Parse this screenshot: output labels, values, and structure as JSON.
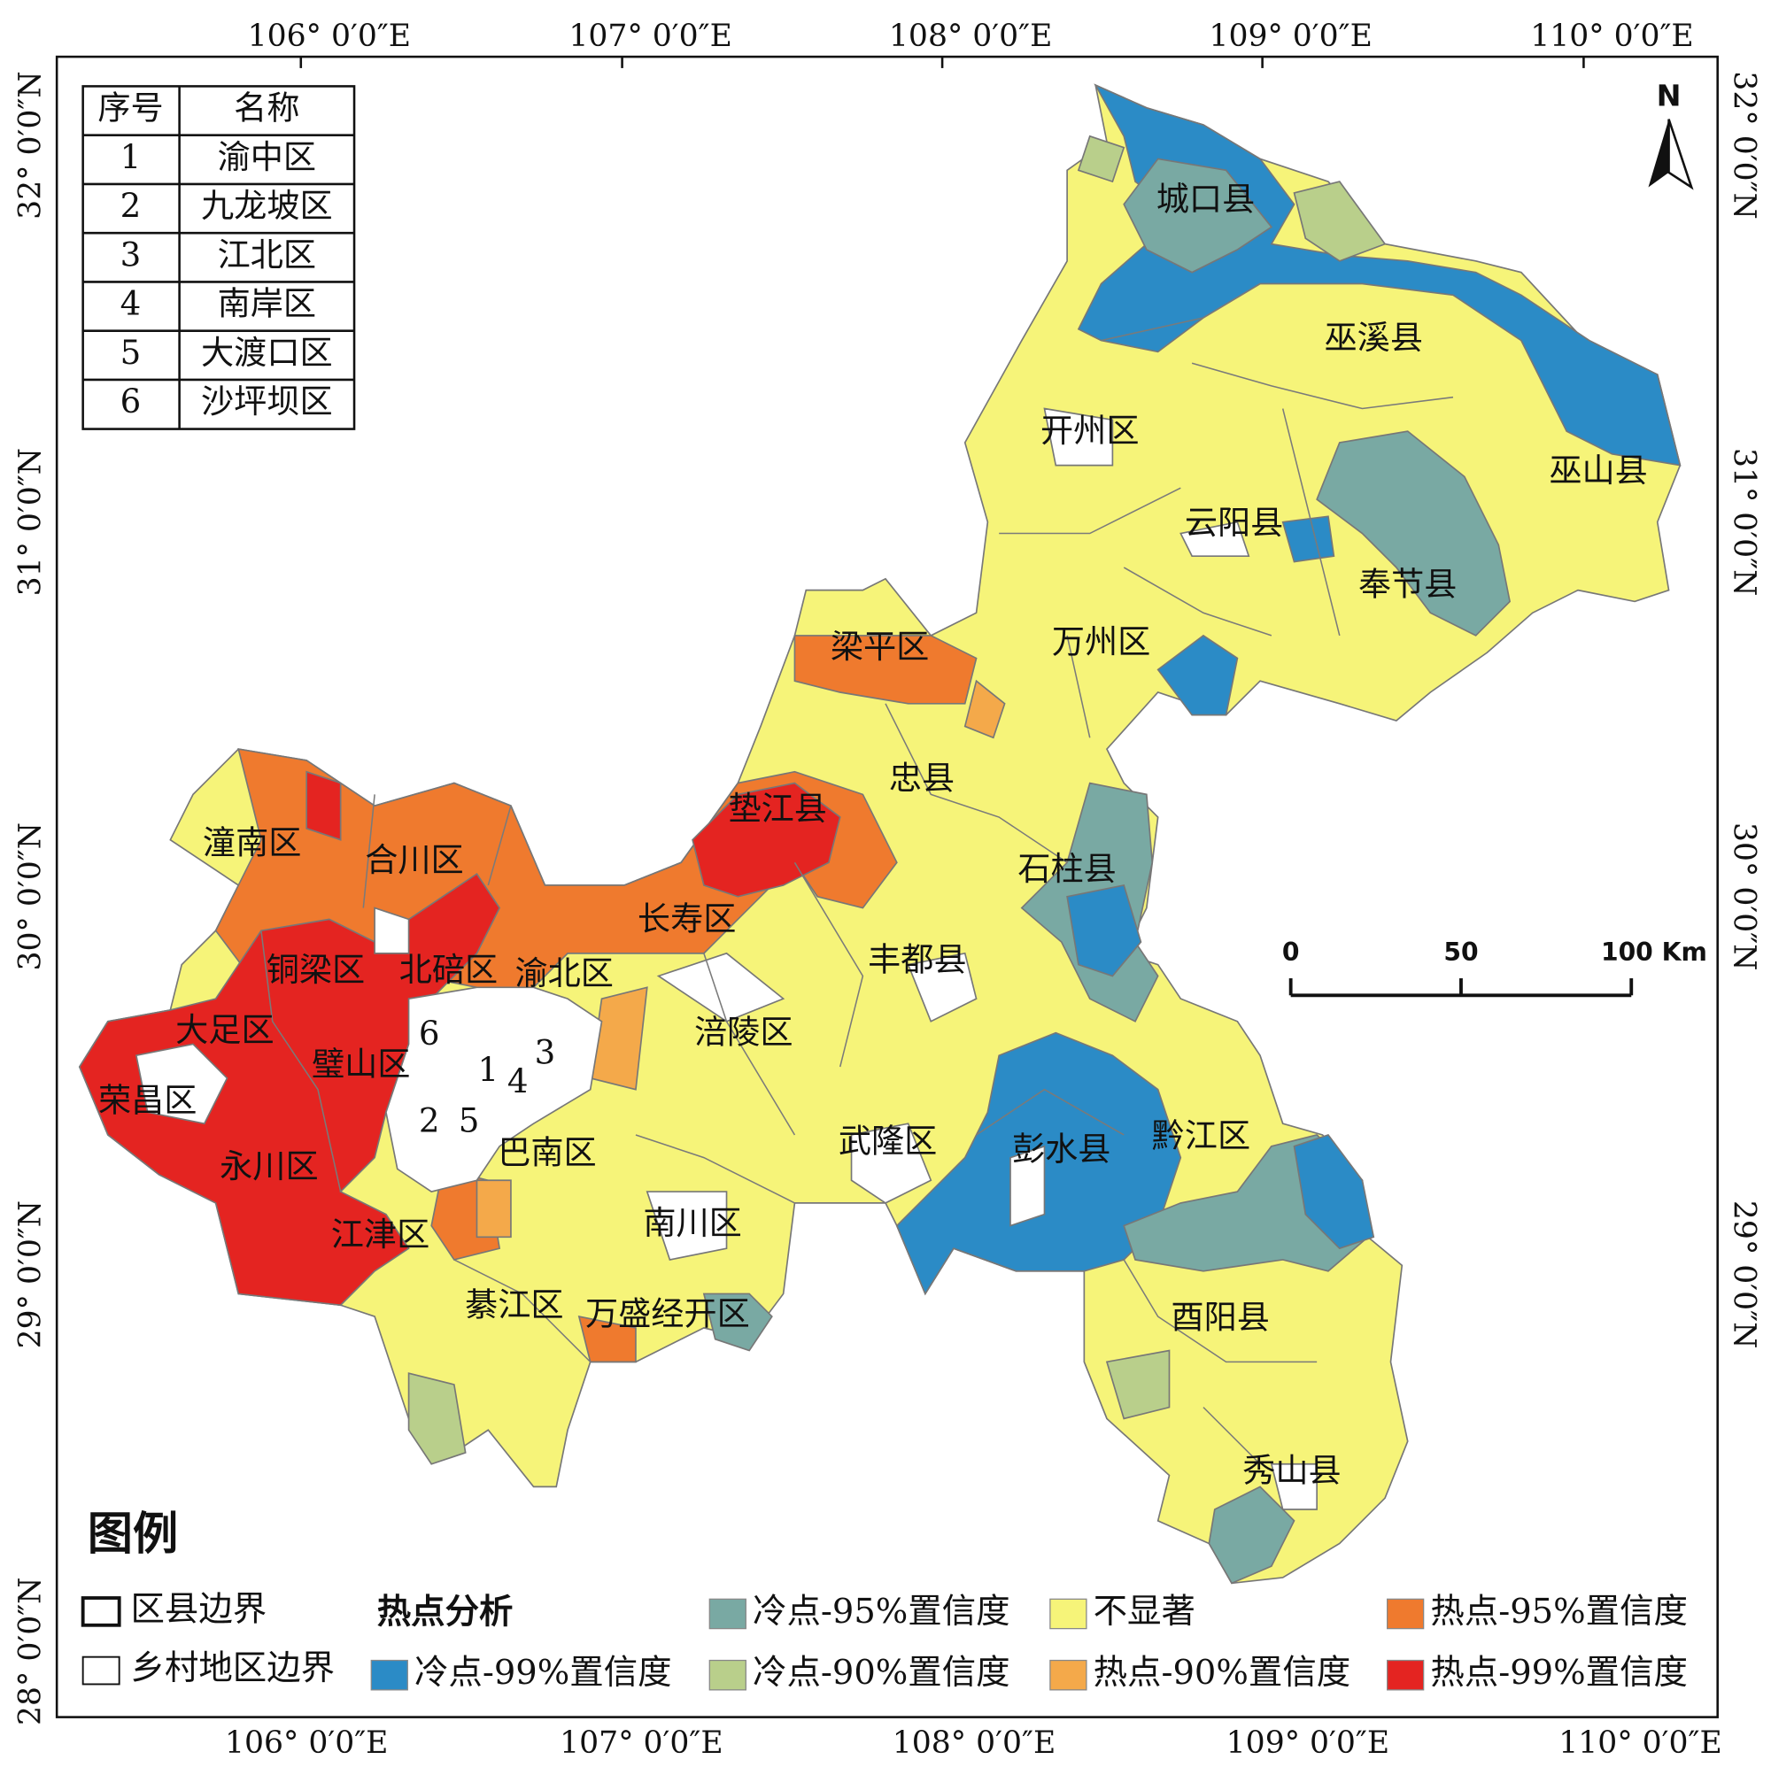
{
  "frame": {
    "top_labels": [
      "106° 0′0″E",
      "107° 0′0″E",
      "108° 0′0″E",
      "109° 0′0″E",
      "110° 0′0″E"
    ],
    "bottom_labels": [
      "106° 0′0″E",
      "107° 0′0″E",
      "108° 0′0″E",
      "109° 0′0″E",
      "110° 0′0″E"
    ],
    "left_labels": [
      "32° 0′0″N",
      "31° 0′0″N",
      "30° 0′0″N",
      "29° 0′0″N",
      "28° 0′0″N"
    ],
    "right_labels": [
      "32° 0′0″N",
      "31° 0′0″N",
      "30° 0′0″N",
      "29° 0′0″N"
    ]
  },
  "index_table": {
    "header": [
      "序号",
      "名称"
    ],
    "rows": [
      [
        "1",
        "渝中区"
      ],
      [
        "2",
        "九龙坡区"
      ],
      [
        "3",
        "江北区"
      ],
      [
        "4",
        "南岸区"
      ],
      [
        "5",
        "大渡口区"
      ],
      [
        "6",
        "沙坪坝区"
      ]
    ]
  },
  "north_label": "N",
  "scale_bar": [
    "0",
    "50",
    "100 Km"
  ],
  "place_labels": [
    "城口县",
    "巫溪县",
    "开州区",
    "巫山县",
    "云阳县",
    "奉节县",
    "梁平区",
    "万州区",
    "忠县",
    "垫江县",
    "石柱县",
    "潼南区",
    "合川区",
    "长寿区",
    "丰都县",
    "铜梁区",
    "北碚区",
    "渝北区",
    "大足区",
    "涪陵区",
    "璧山区",
    "荣昌区",
    "巴南区",
    "武隆区",
    "彭水县",
    "黔江区",
    "永川区",
    "南川区",
    "江津区",
    "綦江区",
    "万盛经开区",
    "酉阳县",
    "秀山县",
    "6",
    "3",
    "1",
    "4",
    "2",
    "5"
  ],
  "legend": {
    "title": "图例",
    "boundaries": [
      "区县边界",
      "乡村地区边界"
    ],
    "analysis_title": "热点分析",
    "classes": [
      {
        "name": "冷点-95%置信度",
        "color": "#79a9a3"
      },
      {
        "name": "不显著",
        "color": "#f6f479"
      },
      {
        "name": "热点-95%置信度",
        "color": "#ef7a2e"
      },
      {
        "name": "冷点-99%置信度",
        "color": "#2b8bc6"
      },
      {
        "name": "冷点-90%置信度",
        "color": "#b9cf8b"
      },
      {
        "name": "热点-90%置信度",
        "color": "#f4a94a"
      },
      {
        "name": "热点-99%置信度",
        "color": "#e42421"
      }
    ]
  }
}
